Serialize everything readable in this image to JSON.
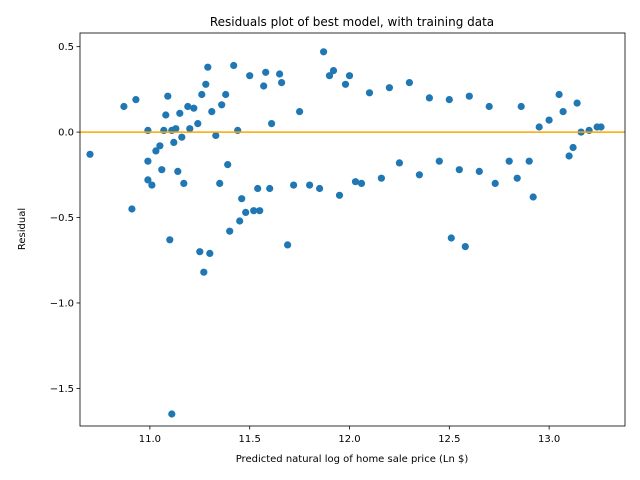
{
  "chart_data": {
    "type": "scatter",
    "title": "Residuals plot of best model, with training data",
    "xlabel": "Predicted natural log of home sale price (Ln $)",
    "ylabel": "Residual",
    "xlim": [
      10.65,
      13.38
    ],
    "ylim": [
      -1.72,
      0.58
    ],
    "xticks": [
      11.0,
      11.5,
      12.0,
      12.5,
      13.0
    ],
    "xtick_labels": [
      "11.0",
      "11.5",
      "12.0",
      "12.5",
      "13.0"
    ],
    "yticks": [
      0.5,
      0.0,
      -0.5,
      -1.0,
      -1.5
    ],
    "ytick_labels": [
      "0.5",
      "0.0",
      "−0.5",
      "−1.0",
      "−1.5"
    ],
    "grid": false,
    "point_color": "#1f77b4",
    "reference_line": {
      "y": 0.0,
      "color": "#ffa500"
    },
    "series": [
      {
        "points": [
          [
            10.7,
            -0.13
          ],
          [
            10.87,
            0.15
          ],
          [
            10.91,
            -0.45
          ],
          [
            10.93,
            0.19
          ],
          [
            10.99,
            0.01
          ],
          [
            10.99,
            -0.17
          ],
          [
            10.99,
            -0.28
          ],
          [
            11.01,
            -0.31
          ],
          [
            11.03,
            -0.11
          ],
          [
            11.05,
            -0.08
          ],
          [
            11.06,
            -0.22
          ],
          [
            11.07,
            0.01
          ],
          [
            11.08,
            0.1
          ],
          [
            11.09,
            0.21
          ],
          [
            11.1,
            -0.63
          ],
          [
            11.11,
            0.01
          ],
          [
            11.12,
            -0.06
          ],
          [
            11.13,
            0.02
          ],
          [
            11.14,
            -0.23
          ],
          [
            11.15,
            0.11
          ],
          [
            11.16,
            -0.03
          ],
          [
            11.17,
            -0.3
          ],
          [
            11.19,
            0.15
          ],
          [
            11.2,
            0.02
          ],
          [
            11.22,
            0.14
          ],
          [
            11.24,
            0.05
          ],
          [
            11.25,
            -0.7
          ],
          [
            11.26,
            0.22
          ],
          [
            11.27,
            -0.82
          ],
          [
            11.28,
            0.28
          ],
          [
            11.29,
            0.38
          ],
          [
            11.3,
            -0.71
          ],
          [
            11.31,
            0.12
          ],
          [
            11.33,
            -0.02
          ],
          [
            11.35,
            -0.3
          ],
          [
            11.36,
            0.16
          ],
          [
            11.38,
            0.22
          ],
          [
            11.39,
            -0.19
          ],
          [
            11.4,
            -0.58
          ],
          [
            11.42,
            0.39
          ],
          [
            11.44,
            0.01
          ],
          [
            11.45,
            -0.52
          ],
          [
            11.46,
            -0.39
          ],
          [
            11.48,
            -0.47
          ],
          [
            11.5,
            0.33
          ],
          [
            11.52,
            -0.46
          ],
          [
            11.54,
            -0.33
          ],
          [
            11.55,
            -0.46
          ],
          [
            11.57,
            0.27
          ],
          [
            11.58,
            0.35
          ],
          [
            11.6,
            -0.33
          ],
          [
            11.61,
            0.05
          ],
          [
            11.65,
            0.34
          ],
          [
            11.66,
            0.29
          ],
          [
            11.69,
            -0.66
          ],
          [
            11.72,
            -0.31
          ],
          [
            11.75,
            0.12
          ],
          [
            11.8,
            -0.31
          ],
          [
            11.85,
            -0.33
          ],
          [
            11.87,
            0.47
          ],
          [
            11.9,
            0.33
          ],
          [
            11.92,
            0.36
          ],
          [
            11.95,
            -0.37
          ],
          [
            11.98,
            0.28
          ],
          [
            12.0,
            0.33
          ],
          [
            12.03,
            -0.29
          ],
          [
            12.06,
            -0.3
          ],
          [
            12.1,
            0.23
          ],
          [
            12.16,
            -0.27
          ],
          [
            12.2,
            0.26
          ],
          [
            12.25,
            -0.18
          ],
          [
            12.3,
            0.29
          ],
          [
            12.35,
            -0.25
          ],
          [
            12.4,
            0.2
          ],
          [
            12.45,
            -0.17
          ],
          [
            12.5,
            0.19
          ],
          [
            12.51,
            -0.62
          ],
          [
            12.55,
            -0.22
          ],
          [
            12.58,
            -0.67
          ],
          [
            12.6,
            0.21
          ],
          [
            12.65,
            -0.23
          ],
          [
            12.7,
            0.15
          ],
          [
            12.73,
            -0.3
          ],
          [
            12.8,
            -0.17
          ],
          [
            12.84,
            -0.27
          ],
          [
            12.86,
            0.15
          ],
          [
            12.9,
            -0.17
          ],
          [
            12.92,
            -0.38
          ],
          [
            12.95,
            0.03
          ],
          [
            13.0,
            0.07
          ],
          [
            13.05,
            0.22
          ],
          [
            13.07,
            0.12
          ],
          [
            13.1,
            -0.14
          ],
          [
            13.12,
            -0.09
          ],
          [
            13.14,
            0.17
          ],
          [
            13.16,
            0.0
          ],
          [
            13.2,
            0.01
          ],
          [
            13.24,
            0.03
          ],
          [
            13.26,
            0.03
          ],
          [
            11.11,
            -1.65
          ]
        ]
      }
    ]
  }
}
